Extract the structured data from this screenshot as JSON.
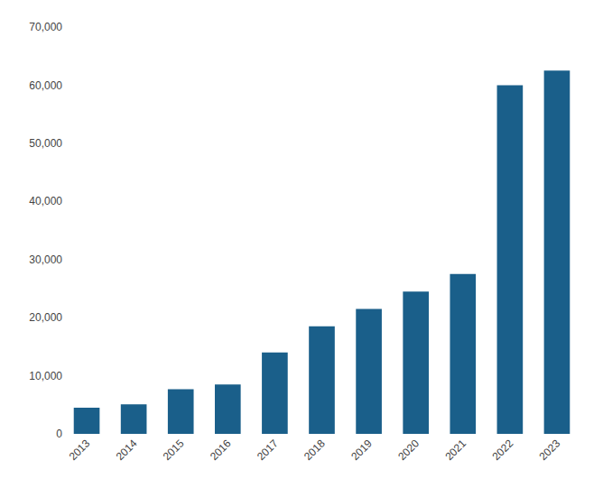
{
  "chart_data": {
    "type": "bar",
    "categories": [
      "2013",
      "2014",
      "2015",
      "2016",
      "2017",
      "2018",
      "2019",
      "2020",
      "2021",
      "2022",
      "2023"
    ],
    "values": [
      4500,
      5100,
      7700,
      8500,
      14000,
      18500,
      21500,
      24500,
      27500,
      60000,
      62500
    ],
    "color": "#1a5f8a",
    "ylim": [
      0,
      70000
    ],
    "yticks": [
      0,
      {
        "value": 10000,
        "label": "10,000"
      },
      {
        "value": 20000,
        "label": "20,000"
      },
      {
        "value": 30000,
        "label": "30,000"
      },
      {
        "value": 40000,
        "label": "40,000"
      },
      {
        "value": 50000,
        "label": "50,000"
      },
      {
        "value": 60000,
        "label": "60,000"
      },
      {
        "value": 70000,
        "label": "70,000"
      }
    ],
    "grid": false
  }
}
